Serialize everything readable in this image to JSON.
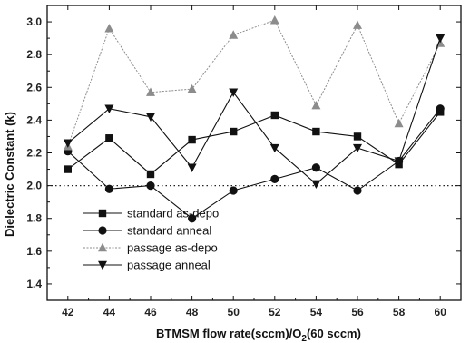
{
  "chart_data": {
    "type": "line",
    "xlabel_main": "BTMSM flow rate(sccm)/O",
    "xlabel_sub": "2",
    "xlabel_tail": "(60 sccm)",
    "ylabel": "Dielectric Constant (k)",
    "x": [
      42,
      44,
      46,
      48,
      50,
      52,
      54,
      56,
      58,
      60
    ],
    "xlim": [
      41,
      61
    ],
    "ylim": [
      1.3,
      3.1
    ],
    "xticks": [
      "42",
      "44",
      "46",
      "48",
      "50",
      "52",
      "54",
      "56",
      "58",
      "60"
    ],
    "yticks": [
      "1.4",
      "1.6",
      "1.8",
      "2.0",
      "2.2",
      "2.4",
      "2.6",
      "2.8",
      "3.0"
    ],
    "reference_line": 2.0,
    "legend_position": "bottom-left",
    "series": [
      {
        "name": "standard as-depo",
        "marker": "square",
        "color": "#111111",
        "dashed": false,
        "values": [
          2.1,
          2.29,
          2.07,
          2.28,
          2.33,
          2.43,
          2.33,
          2.3,
          2.13,
          2.45
        ]
      },
      {
        "name": "standard anneal",
        "marker": "circle",
        "color": "#111111",
        "dashed": false,
        "values": [
          2.21,
          1.98,
          2.0,
          1.8,
          1.97,
          2.04,
          2.11,
          1.97,
          2.15,
          2.47
        ]
      },
      {
        "name": "passage as-depo",
        "marker": "triangle-up",
        "color": "#8c8c8c",
        "dashed": true,
        "values": [
          2.24,
          2.96,
          2.57,
          2.59,
          2.92,
          3.01,
          2.49,
          2.98,
          2.38,
          2.87
        ]
      },
      {
        "name": "passage anneal",
        "marker": "triangle-down",
        "color": "#111111",
        "dashed": false,
        "values": [
          2.26,
          2.47,
          2.42,
          2.11,
          2.57,
          2.23,
          2.01,
          2.23,
          2.15,
          2.9
        ]
      }
    ]
  }
}
